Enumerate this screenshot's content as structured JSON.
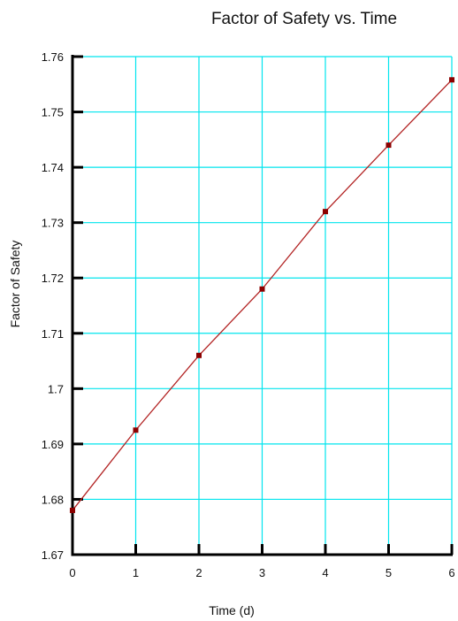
{
  "chart_data": {
    "type": "line",
    "title": "Factor of Safety vs. Time",
    "xlabel": "Time (d)",
    "ylabel": "Factor of Safety",
    "x": [
      0,
      1,
      2,
      3,
      4,
      5,
      6
    ],
    "xlim": [
      0,
      6
    ],
    "ylim": [
      1.67,
      1.76
    ],
    "x_ticks": [
      "0",
      "1",
      "2",
      "3",
      "4",
      "5",
      "6"
    ],
    "y_ticks": [
      "1.67",
      "1.68",
      "1.69",
      "1.7",
      "1.71",
      "1.72",
      "1.73",
      "1.74",
      "1.75",
      "1.76"
    ],
    "grid": true,
    "series": [
      {
        "values": [
          1.678,
          1.6925,
          1.706,
          1.718,
          1.732,
          1.744,
          1.7558
        ]
      }
    ],
    "colors": {
      "grid": "#00e5ee",
      "line": "#b22222",
      "marker": "#8b0000",
      "axis": "#000000"
    }
  }
}
